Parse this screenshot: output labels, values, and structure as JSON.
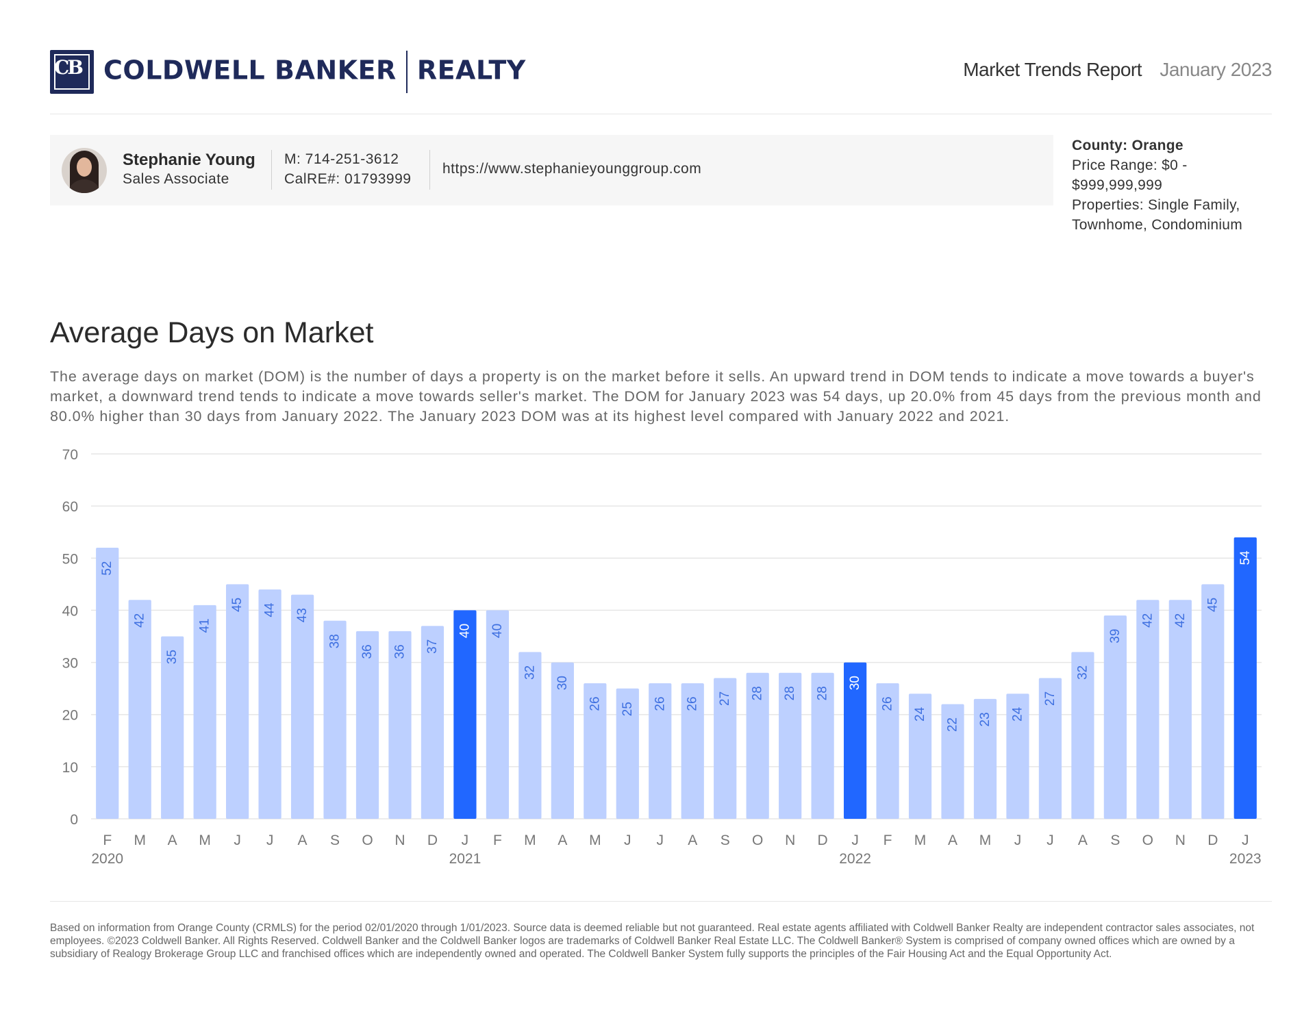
{
  "brand": {
    "logo_wordmark": "COLDWELL BANKER",
    "logo_suffix": "REALTY",
    "logo_badge": "CB",
    "color": "#1f2a5a"
  },
  "report": {
    "title": "Market Trends Report",
    "date": "January 2023"
  },
  "agent": {
    "name": "Stephanie Young",
    "role": "Sales Associate",
    "phone": "M: 714-251-3612",
    "license": "CalRE#: 01793999",
    "url": "https://www.stephanieyounggroup.com"
  },
  "filters": {
    "county": "County: Orange",
    "price_range": "Price Range: $0 - $999,999,999",
    "properties": "Properties: Single Family, Townhome, Condominium"
  },
  "section": {
    "title": "Average Days on Market",
    "description": "The average days on market (DOM) is the number of days a property is on the market before it sells. An upward trend in DOM tends to indicate a move towards a buyer's market, a downward trend tends to indicate a move towards seller's market. The DOM for January 2023 was 54 days, up 20.0% from 45 days from the previous month and 80.0% higher than 30 days from January 2022. The January 2023 DOM was at its highest level compared with January 2022 and 2021."
  },
  "chart_data": {
    "type": "bar",
    "categories": [
      "F",
      "M",
      "A",
      "M",
      "J",
      "J",
      "A",
      "S",
      "O",
      "N",
      "D",
      "J",
      "F",
      "M",
      "A",
      "M",
      "J",
      "J",
      "A",
      "S",
      "O",
      "N",
      "D",
      "J",
      "F",
      "M",
      "A",
      "M",
      "J",
      "J",
      "A",
      "S",
      "O",
      "N",
      "D",
      "J"
    ],
    "values": [
      52,
      42,
      35,
      41,
      45,
      44,
      43,
      38,
      36,
      36,
      37,
      40,
      40,
      32,
      30,
      26,
      25,
      26,
      26,
      27,
      28,
      28,
      28,
      30,
      26,
      24,
      22,
      23,
      24,
      27,
      32,
      39,
      42,
      42,
      45,
      54
    ],
    "highlighted_indices": [
      11,
      23,
      35
    ],
    "year_labels": [
      {
        "index": 0,
        "label": "2020"
      },
      {
        "index": 11,
        "label": "2021"
      },
      {
        "index": 23,
        "label": "2022"
      },
      {
        "index": 35,
        "label": "2023"
      }
    ],
    "yticks": [
      0,
      10,
      20,
      30,
      40,
      50,
      60,
      70
    ],
    "ylim": [
      0,
      70
    ],
    "grid": true,
    "data_labels": "inside-rotated",
    "colors": {
      "bar": "#bdd0ff",
      "highlight": "#2167ff",
      "label": "#3d6fe0",
      "highlight_label": "#ffffff",
      "grid": "#e6e6e6",
      "axis_text": "#777777"
    }
  },
  "footer": {
    "disclaimer": "Based on information from Orange County (CRMLS) for the period 02/01/2020 through 1/01/2023. Source data is deemed reliable but not guaranteed. Real estate agents affiliated with Coldwell Banker Realty are independent contractor sales associates, not employees. ©2023 Coldwell Banker. All Rights Reserved. Coldwell Banker and the Coldwell Banker logos are trademarks of Coldwell Banker Real Estate LLC. The Coldwell Banker® System is comprised of company owned offices which are owned by a subsidiary of Realogy Brokerage Group LLC and franchised offices which are independently owned and operated. The Coldwell Banker System fully supports the principles of the Fair Housing Act and the Equal Opportunity Act."
  }
}
